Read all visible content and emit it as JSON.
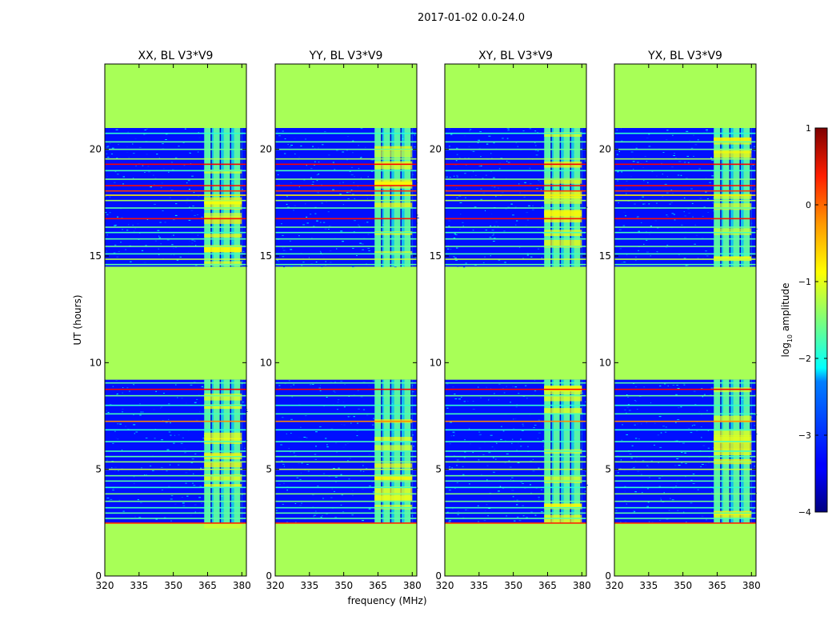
{
  "figure": {
    "title": "2017-01-02 0.0-24.0"
  },
  "chart_data": {
    "type": "heatmap",
    "title": "2017-01-02 0.0-24.0",
    "xlabel": "frequency (MHz)",
    "ylabel": "UT (hours)",
    "xlim": [
      320,
      382
    ],
    "ylim": [
      0,
      24
    ],
    "xticks": [
      320,
      335,
      350,
      365,
      380
    ],
    "yticks": [
      0,
      5,
      10,
      15,
      20
    ],
    "colorbar": {
      "label": "log10 amplitude",
      "label_main": "log",
      "label_sub": "10",
      "label_rest": " amplitude",
      "min": -4,
      "max": 1,
      "ticks": [
        -4,
        -3,
        -2,
        -1,
        0,
        1
      ],
      "tick_labels": [
        "−4",
        "−3",
        "−2",
        "−1",
        "0",
        "1"
      ],
      "colormap": "jet"
    },
    "panels": [
      {
        "title": "XX, BL V3*V9"
      },
      {
        "title": "YY, BL V3*V9"
      },
      {
        "title": "XY, BL V3*V9"
      },
      {
        "title": "YX, BL V3*V9"
      }
    ],
    "flagged_fill_value": -1.3,
    "background_value": -3.3,
    "data_time_ranges": [
      [
        2.5,
        9.2
      ],
      [
        14.5,
        21.0
      ]
    ],
    "flagged_time_ranges": [
      [
        0.0,
        2.5
      ],
      [
        9.2,
        14.5
      ],
      [
        21.0,
        24.0
      ]
    ],
    "band_frequency_range": [
      363.5,
      380.0
    ],
    "band_channel_centers": [
      365,
      369,
      373.5,
      378
    ],
    "horizontal_lines": [
      {
        "t": 2.48,
        "v": 0.2
      },
      {
        "t": 2.7,
        "v": -1.7
      },
      {
        "t": 2.95,
        "v": -1.7
      },
      {
        "t": 3.2,
        "v": -1.8
      },
      {
        "t": 3.5,
        "v": -1.6
      },
      {
        "t": 3.85,
        "v": -1.5
      },
      {
        "t": 4.15,
        "v": -1.9
      },
      {
        "t": 4.45,
        "v": -1.7
      },
      {
        "t": 4.7,
        "v": -1.6
      },
      {
        "t": 5.0,
        "v": -1.2
      },
      {
        "t": 5.35,
        "v": -1.4
      },
      {
        "t": 5.6,
        "v": -1.7
      },
      {
        "t": 5.85,
        "v": -1.8
      },
      {
        "t": 6.3,
        "v": -1.8
      },
      {
        "t": 6.85,
        "v": -1.9
      },
      {
        "t": 7.25,
        "v": -0.3
      },
      {
        "t": 7.6,
        "v": -1.8
      },
      {
        "t": 8.0,
        "v": -1.9
      },
      {
        "t": 8.45,
        "v": -1.6
      },
      {
        "t": 8.75,
        "v": 0.4
      },
      {
        "t": 9.05,
        "v": -1.7
      },
      {
        "t": 14.6,
        "v": -1.7
      },
      {
        "t": 14.85,
        "v": -1.2
      },
      {
        "t": 15.1,
        "v": -1.8
      },
      {
        "t": 15.45,
        "v": -1.6
      },
      {
        "t": 15.8,
        "v": -1.7
      },
      {
        "t": 16.1,
        "v": -1.8
      },
      {
        "t": 16.35,
        "v": -1.6
      },
      {
        "t": 16.75,
        "v": 0.3
      },
      {
        "t": 17.25,
        "v": -1.7
      },
      {
        "t": 17.6,
        "v": -1.3
      },
      {
        "t": 17.85,
        "v": -0.8
      },
      {
        "t": 18.05,
        "v": 0.1
      },
      {
        "t": 18.3,
        "v": 0.3
      },
      {
        "t": 18.6,
        "v": -1.5
      },
      {
        "t": 19.0,
        "v": -1.8
      },
      {
        "t": 19.3,
        "v": 0.4
      },
      {
        "t": 19.55,
        "v": -1.3
      },
      {
        "t": 20.0,
        "v": -1.6
      },
      {
        "t": 20.35,
        "v": -1.7
      },
      {
        "t": 20.75,
        "v": -1.9
      }
    ]
  }
}
